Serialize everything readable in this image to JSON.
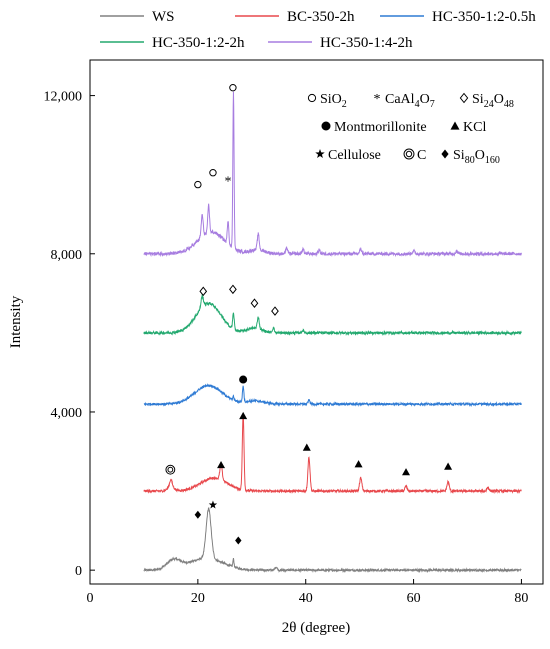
{
  "chart_data": {
    "type": "line",
    "xlabel": "2θ (degree)",
    "ylabel": "Intensity",
    "xlim": [
      0,
      84
    ],
    "ylim": [
      -350,
      12900
    ],
    "x_ticks": [
      0,
      20,
      40,
      60,
      80
    ],
    "x_tick_labels": [
      "0",
      "20",
      "40",
      "60",
      "80"
    ],
    "y_ticks": [
      0,
      4000,
      8000,
      12000
    ],
    "y_tick_labels": [
      "0",
      "4,000",
      "8,000",
      "12,000"
    ],
    "grid": false,
    "legend_position": "top",
    "series": [
      {
        "name": "WS",
        "color": "#808080",
        "baseline": 0,
        "noise": 28,
        "humps": [
          [
            15.5,
            230,
            1.8
          ],
          [
            21.5,
            300,
            4.5
          ]
        ],
        "peaks": [
          [
            22.0,
            1250,
            0.65
          ],
          [
            26.6,
            200,
            0.15
          ],
          [
            34.5,
            80,
            0.3
          ]
        ],
        "points": [
          [
            10,
            20
          ],
          [
            12,
            40
          ],
          [
            14,
            150
          ],
          [
            15.5,
            330
          ],
          [
            17,
            190
          ],
          [
            19,
            240
          ],
          [
            20.5,
            750
          ],
          [
            22,
            1550
          ],
          [
            23.5,
            600
          ],
          [
            25,
            230
          ],
          [
            26.6,
            310
          ],
          [
            28,
            130
          ],
          [
            30,
            90
          ],
          [
            34.5,
            110
          ],
          [
            40,
            50
          ],
          [
            50,
            25
          ],
          [
            60,
            20
          ],
          [
            70,
            20
          ],
          [
            80,
            15
          ]
        ]
      },
      {
        "name": "BC-350-2h",
        "color": "#e8494d",
        "baseline": 2000,
        "noise": 30,
        "humps": [
          [
            15.0,
            130,
            0.8
          ],
          [
            23.0,
            330,
            3.5
          ]
        ],
        "peaks": [
          [
            15.0,
            160,
            0.3
          ],
          [
            24.3,
            380,
            0.3
          ],
          [
            28.4,
            1920,
            0.22
          ],
          [
            40.6,
            850,
            0.28
          ],
          [
            50.2,
            330,
            0.3
          ],
          [
            58.6,
            120,
            0.3
          ],
          [
            66.4,
            230,
            0.3
          ],
          [
            73.8,
            90,
            0.3
          ]
        ],
        "points": [
          [
            10,
            2000
          ],
          [
            14,
            2100
          ],
          [
            15,
            2290
          ],
          [
            17,
            2100
          ],
          [
            20,
            2200
          ],
          [
            23,
            2330
          ],
          [
            24.3,
            2700
          ],
          [
            26,
            2260
          ],
          [
            28.4,
            3920
          ],
          [
            30,
            2130
          ],
          [
            35,
            2030
          ],
          [
            40.6,
            2850
          ],
          [
            45,
            2020
          ],
          [
            50.2,
            2330
          ],
          [
            58.6,
            2120
          ],
          [
            66.4,
            2230
          ],
          [
            73.8,
            2090
          ],
          [
            80,
            2000
          ]
        ]
      },
      {
        "name": "HC-350-1:2-0.5h",
        "color": "#2f7bd4",
        "baseline": 4200,
        "noise": 28,
        "humps": [
          [
            22.0,
            470,
            3.6
          ],
          [
            30.5,
            80,
            2.5
          ]
        ],
        "peaks": [
          [
            28.4,
            400,
            0.18
          ],
          [
            26.6,
            90,
            0.18
          ],
          [
            40.6,
            100,
            0.25
          ]
        ],
        "points": [
          [
            10,
            4200
          ],
          [
            15,
            4230
          ],
          [
            18,
            4400
          ],
          [
            22,
            4670
          ],
          [
            26,
            4400
          ],
          [
            28.4,
            4740
          ],
          [
            31,
            4300
          ],
          [
            35,
            4230
          ],
          [
            40.6,
            4300
          ],
          [
            50,
            4210
          ],
          [
            60,
            4200
          ],
          [
            70,
            4200
          ],
          [
            80,
            4190
          ]
        ]
      },
      {
        "name": "HC-350-1:2-2h",
        "color": "#23a96f",
        "baseline": 6000,
        "noise": 32,
        "humps": [
          [
            22.0,
            750,
            3.2
          ],
          [
            30.5,
            120,
            2.0
          ]
        ],
        "peaks": [
          [
            20.8,
            280,
            0.3
          ],
          [
            26.6,
            400,
            0.2
          ],
          [
            31.2,
            300,
            0.25
          ],
          [
            34.0,
            120,
            0.25
          ],
          [
            39.5,
            60,
            0.3
          ]
        ],
        "points": [
          [
            10,
            6000
          ],
          [
            15,
            6040
          ],
          [
            18,
            6300
          ],
          [
            20.8,
            7000
          ],
          [
            22,
            6750
          ],
          [
            25,
            6400
          ],
          [
            26.6,
            6600
          ],
          [
            29,
            6200
          ],
          [
            31.2,
            6400
          ],
          [
            34,
            6150
          ],
          [
            40,
            6070
          ],
          [
            50,
            6020
          ],
          [
            60,
            6000
          ],
          [
            70,
            6000
          ],
          [
            80,
            5980
          ]
        ]
      },
      {
        "name": "HC-350-1:4-2h",
        "color": "#a77de0",
        "baseline": 8000,
        "noise": 40,
        "humps": [
          [
            22.5,
            550,
            3.5
          ],
          [
            31.0,
            100,
            2.0
          ]
        ],
        "peaks": [
          [
            20.8,
            550,
            0.25
          ],
          [
            22.0,
            700,
            0.22
          ],
          [
            25.6,
            600,
            0.2
          ],
          [
            26.6,
            3950,
            0.16
          ],
          [
            31.2,
            400,
            0.25
          ],
          [
            36.5,
            150,
            0.25
          ],
          [
            39.5,
            120,
            0.25
          ],
          [
            42.5,
            100,
            0.25
          ],
          [
            50.2,
            120,
            0.25
          ],
          [
            60,
            70,
            0.3
          ],
          [
            68,
            70,
            0.3
          ]
        ],
        "points": [
          [
            10,
            8000
          ],
          [
            15,
            8050
          ],
          [
            18,
            8250
          ],
          [
            20.8,
            9000
          ],
          [
            22,
            9200
          ],
          [
            24,
            8600
          ],
          [
            25.6,
            9150
          ],
          [
            26.6,
            12000
          ],
          [
            28,
            8500
          ],
          [
            31.2,
            8500
          ],
          [
            36.5,
            8200
          ],
          [
            40,
            8150
          ],
          [
            50.2,
            8150
          ],
          [
            60,
            8060
          ],
          [
            70,
            8050
          ],
          [
            80,
            8000
          ]
        ]
      }
    ],
    "markers": [
      {
        "sym": "o",
        "x": 20.0,
        "y": 9750
      },
      {
        "sym": "o",
        "x": 22.8,
        "y": 10050
      },
      {
        "sym": "*",
        "x": 25.6,
        "y": 9850
      },
      {
        "sym": "o",
        "x": 26.5,
        "y": 12200
      },
      {
        "sym": "◇",
        "x": 21.0,
        "y": 7050
      },
      {
        "sym": "◇",
        "x": 26.5,
        "y": 7100
      },
      {
        "sym": "◇",
        "x": 30.5,
        "y": 6750
      },
      {
        "sym": "◇",
        "x": 34.3,
        "y": 6550
      },
      {
        "sym": "●",
        "x": 28.4,
        "y": 4820
      },
      {
        "sym": "◎",
        "x": 14.9,
        "y": 2540
      },
      {
        "sym": "▲",
        "x": 24.3,
        "y": 2660
      },
      {
        "sym": "▲",
        "x": 28.4,
        "y": 3900
      },
      {
        "sym": "▲",
        "x": 40.2,
        "y": 3100
      },
      {
        "sym": "▲",
        "x": 49.8,
        "y": 2680
      },
      {
        "sym": "▲",
        "x": 58.6,
        "y": 2480
      },
      {
        "sym": "▲",
        "x": 66.4,
        "y": 2620
      },
      {
        "sym": "★",
        "x": 22.8,
        "y": 1650
      },
      {
        "sym": "◆",
        "x": 20.0,
        "y": 1400
      },
      {
        "sym": "◆",
        "x": 27.5,
        "y": 750
      }
    ],
    "key": [
      {
        "sym": "o",
        "label": "SiO",
        "sub": "2"
      },
      {
        "sym": "*",
        "label": "CaAl",
        "sub": "4",
        "label2": "O",
        "sub2": "7"
      },
      {
        "sym": "◇",
        "label": "Si",
        "sub": "24",
        "label2": "O",
        "sub2": "48"
      },
      {
        "sym": "●",
        "label": "Montmorillonite"
      },
      {
        "sym": "▲",
        "label": "KCl"
      },
      {
        "sym": "★",
        "label": "Cellulose"
      },
      {
        "sym": "◎",
        "label": "C"
      },
      {
        "sym": "◆",
        "label": "Si",
        "sub": "80",
        "label2": "O",
        "sub2": "160"
      }
    ]
  }
}
